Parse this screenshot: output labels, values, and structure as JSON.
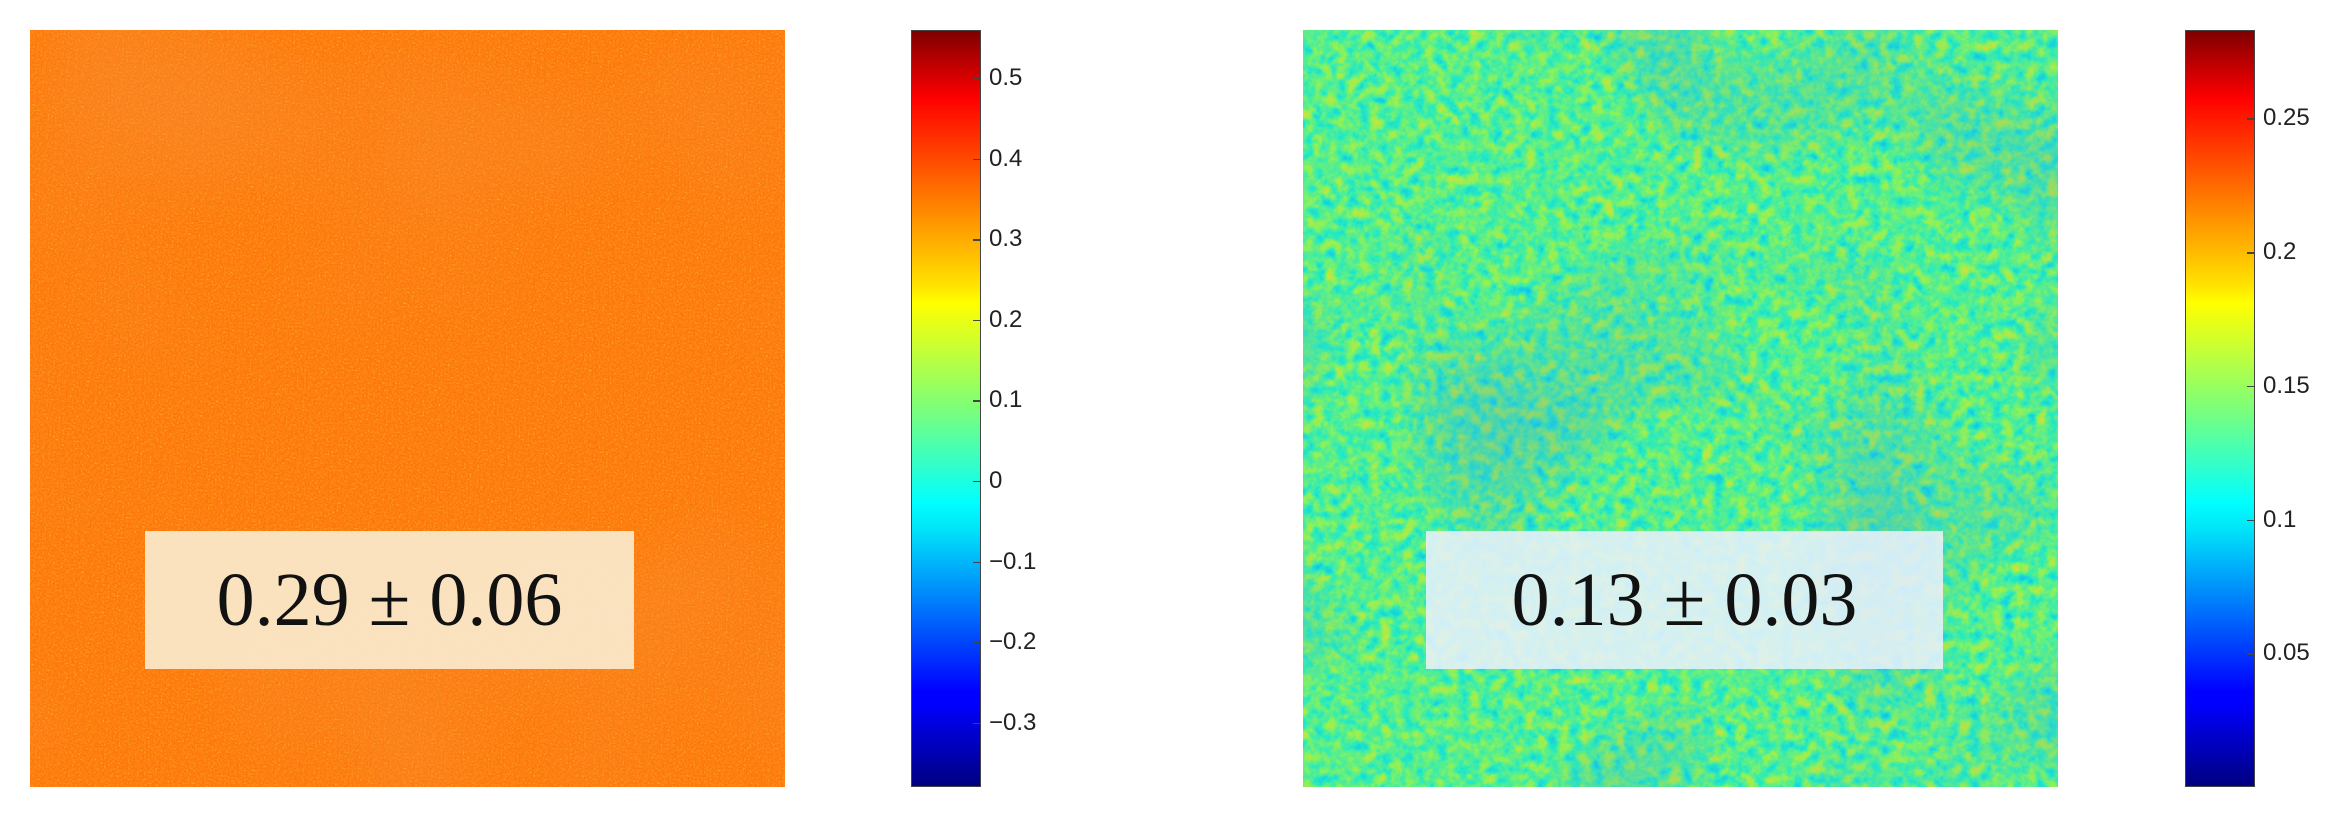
{
  "chart_data": [
    {
      "type": "heatmap",
      "title": "",
      "colormap": "jet",
      "clim": [
        -0.38,
        0.56
      ],
      "colorbar_ticks": [
        0.5,
        0.4,
        0.3,
        0.2,
        0.1,
        0,
        -0.1,
        -0.2,
        -0.3
      ],
      "colorbar_tick_labels": [
        "0.5",
        "0.4",
        "0.3",
        "0.2",
        "0.1",
        "0",
        "−0.1",
        "−0.2",
        "−0.3"
      ],
      "mean": 0.29,
      "std": 0.06,
      "annotation": "0.29 ± 0.06",
      "colorbar_position": "right"
    },
    {
      "type": "heatmap",
      "title": "",
      "colormap": "jet",
      "clim": [
        0.0,
        0.283
      ],
      "colorbar_ticks": [
        0.25,
        0.2,
        0.15,
        0.1,
        0.05
      ],
      "colorbar_tick_labels": [
        "0.25",
        "0.2",
        "0.15",
        "0.1",
        "0.05"
      ],
      "mean": 0.13,
      "std": 0.03,
      "annotation": "0.13 ± 0.03",
      "colorbar_position": "right"
    }
  ]
}
